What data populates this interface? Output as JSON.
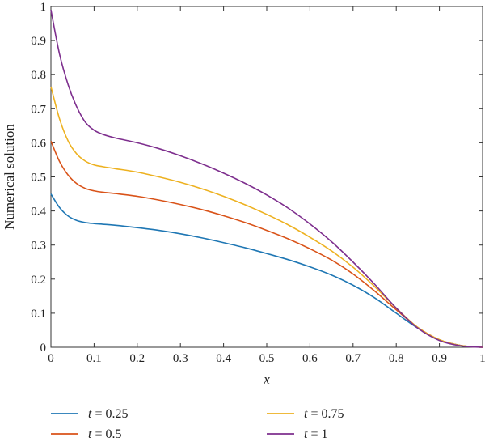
{
  "chart_data": {
    "type": "line",
    "xlabel": "x",
    "ylabel": "Numerical solution",
    "xlim": [
      0,
      1
    ],
    "ylim": [
      0,
      1
    ],
    "xticks": [
      0,
      0.1,
      0.2,
      0.3,
      0.4,
      0.5,
      0.6,
      0.7,
      0.8,
      0.9,
      1
    ],
    "yticks": [
      0,
      0.1,
      0.2,
      0.3,
      0.4,
      0.5,
      0.6,
      0.7,
      0.8,
      0.9,
      1
    ],
    "grid": false,
    "legend_position": "bottom",
    "x": [
      0,
      0.02,
      0.04,
      0.06,
      0.08,
      0.1,
      0.12,
      0.15,
      0.2,
      0.25,
      0.3,
      0.35,
      0.4,
      0.45,
      0.5,
      0.55,
      0.6,
      0.65,
      0.7,
      0.75,
      0.8,
      0.85,
      0.9,
      0.95,
      1
    ],
    "series": [
      {
        "name": "t = 0.25",
        "legend_var": "t",
        "legend_value": "= 0.25",
        "color": "#1f77b4",
        "values": [
          0.45,
          0.41,
          0.385,
          0.372,
          0.366,
          0.363,
          0.361,
          0.358,
          0.351,
          0.343,
          0.333,
          0.321,
          0.307,
          0.292,
          0.275,
          0.257,
          0.236,
          0.212,
          0.182,
          0.145,
          0.1,
          0.056,
          0.022,
          0.005,
          0.0
        ]
      },
      {
        "name": "t = 0.5",
        "legend_var": "t",
        "legend_value": "= 0.5",
        "color": "#d95319",
        "values": [
          0.605,
          0.545,
          0.505,
          0.48,
          0.466,
          0.459,
          0.455,
          0.451,
          0.443,
          0.432,
          0.419,
          0.404,
          0.386,
          0.366,
          0.343,
          0.318,
          0.289,
          0.256,
          0.215,
          0.165,
          0.11,
          0.058,
          0.022,
          0.005,
          0.0
        ]
      },
      {
        "name": "t = 0.75",
        "legend_var": "t",
        "legend_value": "= 0.75",
        "color": "#edb120",
        "values": [
          0.765,
          0.67,
          0.605,
          0.567,
          0.546,
          0.535,
          0.53,
          0.524,
          0.514,
          0.5,
          0.484,
          0.465,
          0.443,
          0.418,
          0.39,
          0.359,
          0.323,
          0.283,
          0.235,
          0.178,
          0.115,
          0.058,
          0.022,
          0.005,
          0.0
        ]
      },
      {
        "name": "t = 1",
        "legend_var": "t",
        "legend_value": "= 1",
        "color": "#7e2f8e",
        "values": [
          0.99,
          0.86,
          0.77,
          0.705,
          0.66,
          0.637,
          0.625,
          0.614,
          0.6,
          0.583,
          0.562,
          0.538,
          0.511,
          0.481,
          0.447,
          0.408,
          0.362,
          0.31,
          0.25,
          0.185,
          0.115,
          0.056,
          0.02,
          0.004,
          0.0
        ]
      }
    ]
  }
}
